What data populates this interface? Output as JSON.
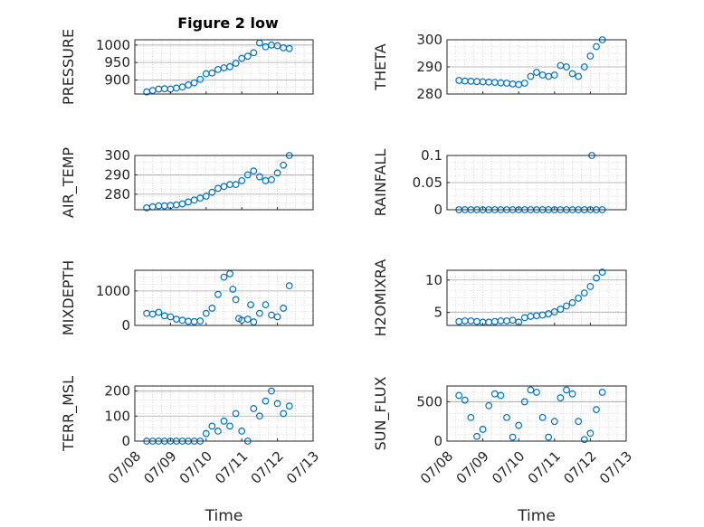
{
  "figure": {
    "title": "Figure 2 low",
    "marker_color": "#0072BD",
    "axis_color": "#262626",
    "grid_color": "#bdbdbd"
  },
  "chart_data": [
    {
      "type": "scatter",
      "ylabel": "PRESSURE",
      "xlabel": "",
      "xlim": [
        "07/08",
        "07/13"
      ],
      "ylim": [
        860,
        1015
      ],
      "yticks": [
        900,
        950,
        1000
      ],
      "xtick_labels": [],
      "grid": "on",
      "x": [
        "07/08 08:00",
        "07/08 12:00",
        "07/08 16:00",
        "07/08 20:00",
        "07/09 00:00",
        "07/09 04:00",
        "07/09 08:00",
        "07/09 12:00",
        "07/09 16:00",
        "07/09 20:00",
        "07/10 00:00",
        "07/10 04:00",
        "07/10 08:00",
        "07/10 12:00",
        "07/10 16:00",
        "07/10 20:00",
        "07/11 00:00",
        "07/11 04:00",
        "07/11 08:00",
        "07/11 12:00",
        "07/11 16:00",
        "07/11 20:00",
        "07/12 00:00",
        "07/12 04:00",
        "07/12 08:00"
      ],
      "y": [
        866,
        870,
        874,
        875,
        874,
        877,
        880,
        886,
        892,
        902,
        918,
        920,
        930,
        935,
        938,
        948,
        962,
        968,
        978,
        1006,
        995,
        1000,
        998,
        992,
        990
      ]
    },
    {
      "type": "scatter",
      "ylabel": "THETA",
      "xlabel": "",
      "xlim": [
        "07/08",
        "07/13"
      ],
      "ylim": [
        280,
        300
      ],
      "yticks": [
        280,
        290,
        300
      ],
      "xtick_labels": [],
      "grid": "on",
      "x": [
        "07/08 08:00",
        "07/08 12:00",
        "07/08 16:00",
        "07/08 20:00",
        "07/09 00:00",
        "07/09 04:00",
        "07/09 08:00",
        "07/09 12:00",
        "07/09 16:00",
        "07/09 20:00",
        "07/10 00:00",
        "07/10 04:00",
        "07/10 08:00",
        "07/10 12:00",
        "07/10 16:00",
        "07/10 20:00",
        "07/11 00:00",
        "07/11 04:00",
        "07/11 08:00",
        "07/11 12:00",
        "07/11 16:00",
        "07/11 20:00",
        "07/12 00:00",
        "07/12 04:00",
        "07/12 08:00"
      ],
      "y": [
        285,
        284.8,
        284.7,
        284.6,
        284.5,
        284.4,
        284.3,
        284.1,
        284,
        283.7,
        283.5,
        284,
        286.5,
        288,
        287,
        286.5,
        287,
        290.5,
        290,
        287.5,
        286.5,
        290,
        294,
        297.5,
        300
      ]
    },
    {
      "type": "scatter",
      "ylabel": "AIR_TEMP",
      "xlabel": "",
      "xlim": [
        "07/08",
        "07/13"
      ],
      "ylim": [
        272,
        300
      ],
      "yticks": [
        280,
        290,
        300
      ],
      "xtick_labels": [],
      "grid": "on",
      "x": [
        "07/08 08:00",
        "07/08 12:00",
        "07/08 16:00",
        "07/08 20:00",
        "07/09 00:00",
        "07/09 04:00",
        "07/09 08:00",
        "07/09 12:00",
        "07/09 16:00",
        "07/09 20:00",
        "07/10 00:00",
        "07/10 04:00",
        "07/10 08:00",
        "07/10 12:00",
        "07/10 16:00",
        "07/10 20:00",
        "07/11 00:00",
        "07/11 04:00",
        "07/11 08:00",
        "07/11 12:00",
        "07/11 16:00",
        "07/11 20:00",
        "07/12 00:00",
        "07/12 04:00",
        "07/12 08:00"
      ],
      "y": [
        273,
        273.5,
        274,
        274,
        274.2,
        274.5,
        275,
        276,
        277,
        278,
        279,
        281,
        283,
        284,
        285,
        285,
        287,
        290,
        292,
        289,
        287,
        287.5,
        291,
        295,
        300
      ]
    },
    {
      "type": "scatter",
      "ylabel": "RAINFALL",
      "xlabel": "",
      "xlim": [
        "07/08",
        "07/13"
      ],
      "ylim": [
        0,
        0.1
      ],
      "yticks": [
        0,
        0.05,
        0.1
      ],
      "xtick_labels": [],
      "grid": "on",
      "x": [
        "07/08 08:00",
        "07/08 12:00",
        "07/08 16:00",
        "07/08 20:00",
        "07/09 00:00",
        "07/09 04:00",
        "07/09 08:00",
        "07/09 12:00",
        "07/09 16:00",
        "07/09 20:00",
        "07/10 00:00",
        "07/10 04:00",
        "07/10 08:00",
        "07/10 12:00",
        "07/10 16:00",
        "07/10 20:00",
        "07/11 00:00",
        "07/11 04:00",
        "07/11 08:00",
        "07/11 12:00",
        "07/11 16:00",
        "07/11 20:00",
        "07/12 00:00",
        "07/12 01:00",
        "07/12 04:00",
        "07/12 08:00"
      ],
      "y": [
        0,
        0,
        0,
        0,
        0,
        0,
        0,
        0,
        0,
        0,
        0,
        0,
        0,
        0,
        0,
        0,
        0,
        0,
        0,
        0,
        0,
        0,
        0,
        0.1,
        0,
        0
      ]
    },
    {
      "type": "scatter",
      "ylabel": "MIXDEPTH",
      "xlabel": "",
      "xlim": [
        "07/08",
        "07/13"
      ],
      "ylim": [
        0,
        1600
      ],
      "yticks": [
        0,
        1000
      ],
      "xtick_labels": [],
      "grid": "on",
      "x": [
        "07/08 08:00",
        "07/08 12:00",
        "07/08 16:00",
        "07/08 20:00",
        "07/09 00:00",
        "07/09 04:00",
        "07/09 08:00",
        "07/09 12:00",
        "07/09 16:00",
        "07/09 20:00",
        "07/10 00:00",
        "07/10 04:00",
        "07/10 08:00",
        "07/10 12:00",
        "07/10 16:00",
        "07/10 18:00",
        "07/10 20:00",
        "07/10 22:00",
        "07/11 00:00",
        "07/11 04:00",
        "07/11 06:00",
        "07/11 08:00",
        "07/11 12:00",
        "07/11 16:00",
        "07/11 20:00",
        "07/12 00:00",
        "07/12 04:00",
        "07/12 08:00"
      ],
      "y": [
        350,
        330,
        380,
        280,
        250,
        180,
        150,
        120,
        110,
        130,
        350,
        500,
        900,
        1400,
        1500,
        1050,
        750,
        200,
        150,
        180,
        600,
        100,
        350,
        600,
        300,
        250,
        500,
        1150
      ]
    },
    {
      "type": "scatter",
      "ylabel": "H2OMIXRA",
      "xlabel": "",
      "xlim": [
        "07/08",
        "07/13"
      ],
      "ylim": [
        3,
        11.5
      ],
      "yticks": [
        5,
        10
      ],
      "xtick_labels": [],
      "grid": "on",
      "x": [
        "07/08 08:00",
        "07/08 12:00",
        "07/08 16:00",
        "07/08 20:00",
        "07/09 00:00",
        "07/09 04:00",
        "07/09 08:00",
        "07/09 12:00",
        "07/09 16:00",
        "07/09 20:00",
        "07/10 00:00",
        "07/10 04:00",
        "07/10 08:00",
        "07/10 12:00",
        "07/10 16:00",
        "07/10 20:00",
        "07/11 00:00",
        "07/11 04:00",
        "07/11 08:00",
        "07/11 12:00",
        "07/11 16:00",
        "07/11 20:00",
        "07/12 00:00",
        "07/12 04:00",
        "07/12 08:00"
      ],
      "y": [
        3.6,
        3.7,
        3.7,
        3.6,
        3.5,
        3.5,
        3.6,
        3.7,
        3.7,
        3.8,
        3.5,
        4.2,
        4.4,
        4.5,
        4.6,
        4.8,
        5.1,
        5.5,
        6,
        6.5,
        7.2,
        8,
        9,
        10.3,
        11.2
      ]
    },
    {
      "type": "scatter",
      "ylabel": "TERR_MSL",
      "xlabel": "Time",
      "xlim": [
        "07/08",
        "07/13"
      ],
      "ylim": [
        0,
        220
      ],
      "yticks": [
        0,
        100,
        200
      ],
      "xtick_labels": [
        "07/08",
        "07/09",
        "07/10",
        "07/11",
        "07/12",
        "07/13"
      ],
      "grid": "on",
      "x": [
        "07/08 08:00",
        "07/08 12:00",
        "07/08 16:00",
        "07/08 20:00",
        "07/09 00:00",
        "07/09 04:00",
        "07/09 08:00",
        "07/09 12:00",
        "07/09 16:00",
        "07/09 20:00",
        "07/10 00:00",
        "07/10 04:00",
        "07/10 08:00",
        "07/10 12:00",
        "07/10 16:00",
        "07/10 20:00",
        "07/11 00:00",
        "07/11 04:00",
        "07/11 08:00",
        "07/11 12:00",
        "07/11 16:00",
        "07/11 20:00",
        "07/12 00:00",
        "07/12 04:00",
        "07/12 08:00"
      ],
      "y": [
        0,
        0,
        0,
        0,
        0,
        0,
        0,
        0,
        0,
        0,
        30,
        60,
        40,
        80,
        60,
        110,
        40,
        0,
        130,
        100,
        160,
        200,
        150,
        110,
        140
      ]
    },
    {
      "type": "scatter",
      "ylabel": "SUN_FLUX",
      "xlabel": "Time",
      "xlim": [
        "07/08",
        "07/13"
      ],
      "ylim": [
        0,
        700
      ],
      "yticks": [
        0,
        500
      ],
      "xtick_labels": [
        "07/08",
        "07/09",
        "07/10",
        "07/11",
        "07/12",
        "07/13"
      ],
      "grid": "on",
      "x": [
        "07/08 08:00",
        "07/08 12:00",
        "07/08 16:00",
        "07/08 20:00",
        "07/09 00:00",
        "07/09 04:00",
        "07/09 08:00",
        "07/09 12:00",
        "07/09 16:00",
        "07/09 20:00",
        "07/10 00:00",
        "07/10 04:00",
        "07/10 08:00",
        "07/10 12:00",
        "07/10 16:00",
        "07/10 20:00",
        "07/11 00:00",
        "07/11 04:00",
        "07/11 08:00",
        "07/11 12:00",
        "07/11 16:00",
        "07/11 20:00",
        "07/12 00:00",
        "07/12 04:00",
        "07/12 08:00"
      ],
      "y": [
        580,
        520,
        300,
        60,
        150,
        450,
        600,
        580,
        300,
        50,
        200,
        500,
        650,
        620,
        300,
        50,
        250,
        550,
        650,
        600,
        250,
        20,
        100,
        400,
        620
      ]
    }
  ]
}
